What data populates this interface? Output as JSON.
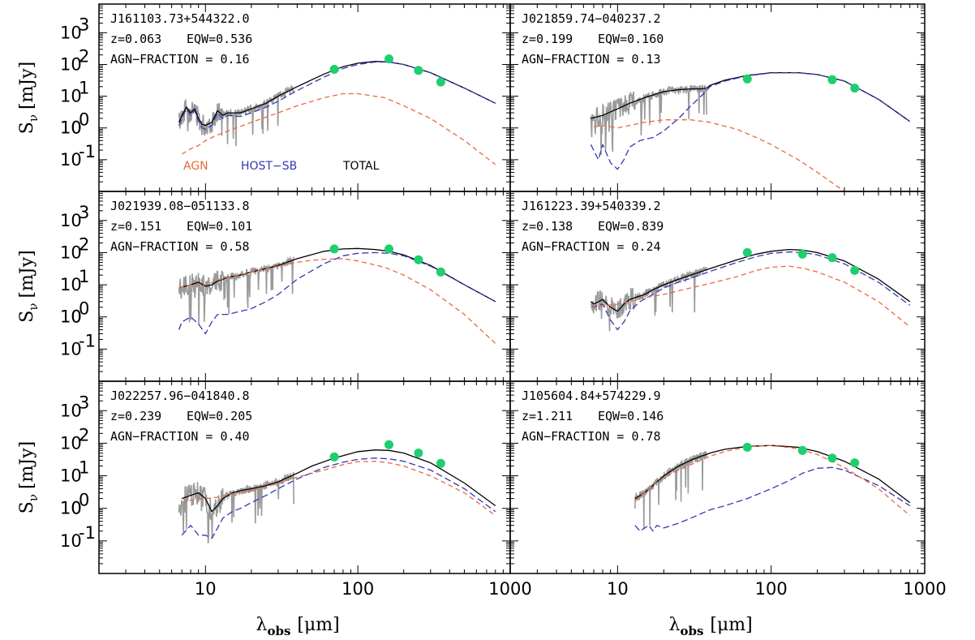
{
  "ylabel_main": "S",
  "ylabel_sub": "ν",
  "ylabel_unit": "[mJy]",
  "xlabel_main": "λ",
  "xlabel_sub": "obs",
  "xlabel_unit": "[μm]",
  "x_ticks": [
    "10",
    "100",
    "1000"
  ],
  "legend": [
    {
      "label": "AGN",
      "color": "#e9693d"
    },
    {
      "label": "HOST−SB",
      "color": "#3437b5"
    },
    {
      "label": "TOTAL",
      "color": "#000000"
    }
  ],
  "colors": {
    "photometry": "#1fce6e",
    "spectrum": "#9a9a9a",
    "agn": "#e9693d",
    "host": "#3437b5",
    "total": "#000000"
  },
  "chart_data": [
    {
      "type": "line",
      "id": "J161103.73+544322.0",
      "z": "z=0.063",
      "eqw": "EQW=0.536",
      "agn_fraction": "AGN−FRACTION = 0.16",
      "xlim": [
        2,
        1000
      ],
      "ylim": [
        0.01,
        8000
      ],
      "xscale": "log",
      "yscale": "log",
      "photometry": {
        "x": [
          70,
          160,
          250,
          350
        ],
        "y": [
          70,
          150,
          65,
          28
        ]
      },
      "spectrum": {
        "x_range": [
          6.7,
          38
        ]
      },
      "series": [
        {
          "key": "total",
          "x": [
            6.7,
            7,
            7.5,
            8,
            8.5,
            9,
            9.5,
            10,
            11,
            12,
            13,
            14,
            17,
            20,
            25,
            30,
            40,
            60,
            80,
            100,
            130,
            160,
            200,
            300,
            500,
            800
          ],
          "y": [
            1.5,
            2.5,
            4.5,
            3,
            4,
            2,
            1.3,
            1.2,
            1.5,
            3.5,
            2.5,
            3,
            3,
            4,
            6,
            10,
            20,
            50,
            85,
            110,
            125,
            120,
            100,
            55,
            18,
            6
          ]
        },
        {
          "key": "host",
          "x": [
            6.7,
            7,
            7.5,
            8,
            8.5,
            9,
            9.5,
            10,
            11,
            12,
            13,
            14,
            17,
            20,
            25,
            30,
            40,
            60,
            80,
            100,
            130,
            160,
            200,
            300,
            500,
            800
          ],
          "y": [
            1.2,
            2,
            4,
            2.5,
            3.5,
            1.6,
            1.0,
            0.9,
            1.2,
            3,
            2,
            2.5,
            2.3,
            3,
            4.5,
            7,
            15,
            40,
            75,
            100,
            120,
            118,
            100,
            55,
            18,
            6
          ]
        },
        {
          "key": "agn",
          "x": [
            7,
            8,
            9,
            10,
            12,
            15,
            20,
            30,
            40,
            60,
            80,
            100,
            150,
            200,
            300,
            500,
            800
          ],
          "y": [
            0.15,
            0.22,
            0.28,
            0.4,
            0.6,
            0.9,
            1.5,
            3,
            5,
            9,
            12,
            12,
            9,
            5,
            2,
            0.4,
            0.07
          ]
        }
      ]
    },
    {
      "type": "line",
      "id": "J021859.74−040237.2",
      "z": "z=0.199",
      "eqw": "EQW=0.160",
      "agn_fraction": "AGN−FRACTION = 0.13",
      "xlim": [
        2,
        1000
      ],
      "ylim": [
        0.01,
        8000
      ],
      "xscale": "log",
      "yscale": "log",
      "photometry": {
        "x": [
          70,
          250,
          350
        ],
        "y": [
          35,
          33,
          18
        ]
      },
      "spectrum": {
        "x_range": [
          6.7,
          38
        ]
      },
      "series": [
        {
          "key": "total",
          "x": [
            6.7,
            8,
            10,
            12,
            15,
            20,
            25,
            30,
            35,
            38,
            40,
            50,
            70,
            100,
            150,
            200,
            300,
            500,
            800
          ],
          "y": [
            2,
            2.5,
            4,
            6,
            9,
            14,
            16,
            17,
            17,
            18,
            22,
            32,
            45,
            55,
            55,
            48,
            30,
            8,
            1.6
          ]
        },
        {
          "key": "host",
          "x": [
            6.7,
            7.5,
            8,
            9,
            10,
            11,
            12,
            14,
            17,
            20,
            25,
            30,
            35,
            38,
            40,
            50,
            70,
            100,
            150,
            200,
            300,
            500,
            800
          ],
          "y": [
            0.3,
            0.1,
            0.3,
            0.08,
            0.05,
            0.1,
            0.25,
            0.4,
            0.5,
            0.8,
            2,
            5,
            10,
            15,
            20,
            30,
            44,
            54,
            55,
            48,
            30,
            8,
            1.6
          ]
        },
        {
          "key": "agn",
          "x": [
            7,
            8,
            10,
            12,
            15,
            20,
            30,
            40,
            60,
            80,
            100,
            150,
            200,
            300
          ],
          "y": [
            1.1,
            1.2,
            1.0,
            1.2,
            1.5,
            1.8,
            1.8,
            1.5,
            0.9,
            0.5,
            0.3,
            0.1,
            0.04,
            0.01
          ]
        }
      ]
    },
    {
      "type": "line",
      "id": "J021939.08−051133.8",
      "z": "z=0.151",
      "eqw": "EQW=0.101",
      "agn_fraction": "AGN−FRACTION = 0.58",
      "xlim": [
        2,
        1000
      ],
      "ylim": [
        0.01,
        8000
      ],
      "xscale": "log",
      "yscale": "log",
      "photometry": {
        "x": [
          70,
          160,
          250,
          350
        ],
        "y": [
          130,
          130,
          60,
          25
        ]
      },
      "spectrum": {
        "x_range": [
          6.7,
          38
        ]
      },
      "series": [
        {
          "key": "total",
          "x": [
            6.7,
            8,
            9,
            10,
            11,
            12,
            14,
            17,
            20,
            25,
            30,
            40,
            60,
            80,
            100,
            130,
            160,
            200,
            300,
            500,
            800
          ],
          "y": [
            8,
            10,
            12,
            9,
            10,
            13,
            17,
            20,
            25,
            32,
            40,
            65,
            110,
            130,
            135,
            125,
            110,
            85,
            40,
            10,
            3
          ]
        },
        {
          "key": "host",
          "x": [
            6.7,
            7,
            8,
            9,
            10,
            11,
            12,
            14,
            17,
            20,
            25,
            30,
            40,
            60,
            80,
            100,
            130,
            160,
            200,
            300,
            500,
            800
          ],
          "y": [
            0.4,
            0.7,
            1.0,
            0.6,
            0.3,
            0.7,
            1.2,
            1.2,
            1.5,
            1.8,
            3,
            5,
            15,
            45,
            80,
            95,
            100,
            95,
            80,
            38,
            10,
            3
          ]
        },
        {
          "key": "agn",
          "x": [
            6.7,
            8,
            10,
            12,
            15,
            20,
            30,
            40,
            50,
            60,
            80,
            100,
            150,
            200,
            300,
            500,
            800
          ],
          "y": [
            8,
            10,
            10,
            14,
            18,
            25,
            38,
            50,
            58,
            62,
            65,
            55,
            35,
            20,
            7,
            1.2,
            0.15
          ]
        }
      ]
    },
    {
      "type": "line",
      "id": "J161223.39+540339.2",
      "z": "z=0.138",
      "eqw": "EQW=0.839",
      "agn_fraction": "AGN−FRACTION = 0.24",
      "xlim": [
        2,
        1000
      ],
      "ylim": [
        0.01,
        8000
      ],
      "xscale": "log",
      "yscale": "log",
      "photometry": {
        "x": [
          70,
          160,
          250,
          350
        ],
        "y": [
          100,
          90,
          70,
          28
        ]
      },
      "spectrum": {
        "x_range": [
          6.7,
          38
        ]
      },
      "series": [
        {
          "key": "total",
          "x": [
            6.7,
            7,
            8,
            9,
            10,
            11,
            12,
            13,
            15,
            17,
            20,
            25,
            30,
            40,
            60,
            80,
            100,
            130,
            160,
            200,
            300,
            500,
            800
          ],
          "y": [
            3,
            2.5,
            3.5,
            2,
            1.5,
            2.5,
            3.5,
            4,
            5,
            7,
            10,
            15,
            20,
            32,
            60,
            90,
            110,
            125,
            120,
            100,
            55,
            15,
            3
          ]
        },
        {
          "key": "host",
          "x": [
            6.7,
            8,
            9,
            10,
            11,
            12,
            14,
            17,
            20,
            25,
            30,
            40,
            60,
            80,
            100,
            130,
            160,
            200,
            300,
            500,
            800
          ],
          "y": [
            2,
            2.5,
            0.8,
            0.4,
            0.7,
            1.5,
            3,
            5,
            8,
            12,
            16,
            26,
            50,
            75,
            95,
            105,
            100,
            85,
            45,
            12,
            2.3
          ]
        },
        {
          "key": "agn",
          "x": [
            6.7,
            8,
            10,
            12,
            15,
            20,
            30,
            40,
            60,
            80,
            100,
            130,
            160,
            200,
            300,
            500,
            800
          ],
          "y": [
            2,
            2.2,
            2.5,
            3,
            4,
            5,
            8,
            11,
            18,
            28,
            35,
            38,
            33,
            25,
            12,
            3,
            0.5
          ]
        }
      ]
    },
    {
      "type": "line",
      "id": "J022257.96−041840.8",
      "z": "z=0.239",
      "eqw": "EQW=0.205",
      "agn_fraction": "AGN−FRACTION = 0.40",
      "xlim": [
        2,
        1000
      ],
      "ylim": [
        0.01,
        8000
      ],
      "xscale": "log",
      "yscale": "log",
      "photometry": {
        "x": [
          70,
          160,
          250,
          350
        ],
        "y": [
          38,
          90,
          50,
          24
        ]
      },
      "spectrum": {
        "x_range": [
          6.7,
          38
        ]
      },
      "series": [
        {
          "key": "total",
          "x": [
            7,
            8,
            9,
            10,
            11,
            12,
            13,
            15,
            17,
            20,
            25,
            30,
            40,
            50,
            70,
            100,
            130,
            160,
            200,
            300,
            500,
            800
          ],
          "y": [
            2,
            2.5,
            3,
            2,
            0.8,
            1.2,
            2,
            3,
            3.5,
            4,
            5,
            6.5,
            12,
            20,
            35,
            55,
            62,
            60,
            50,
            25,
            6,
            1.2
          ]
        },
        {
          "key": "host",
          "x": [
            7,
            8,
            9,
            10,
            11,
            12,
            13,
            15,
            17,
            20,
            25,
            30,
            40,
            60,
            80,
            100,
            130,
            160,
            200,
            300,
            500,
            800
          ],
          "y": [
            0.15,
            0.3,
            0.15,
            0.15,
            0.12,
            0.25,
            0.5,
            0.8,
            1.0,
            1.5,
            2.5,
            4,
            8,
            18,
            26,
            32,
            35,
            33,
            28,
            15,
            4,
            0.8
          ]
        },
        {
          "key": "agn",
          "x": [
            7,
            8,
            10,
            12,
            15,
            20,
            30,
            40,
            60,
            80,
            100,
            130,
            160,
            200,
            300,
            500,
            800
          ],
          "y": [
            1.5,
            1.8,
            2,
            2.2,
            2.8,
            3.5,
            6,
            9,
            15,
            22,
            27,
            28,
            25,
            20,
            10,
            3,
            0.6
          ]
        }
      ]
    },
    {
      "type": "line",
      "id": "J105604.84+574229.9",
      "z": "z=1.211",
      "eqw": "EQW=0.146",
      "agn_fraction": "AGN−FRACTION = 0.78",
      "xlim": [
        2,
        1000
      ],
      "ylim": [
        0.01,
        8000
      ],
      "xscale": "log",
      "yscale": "log",
      "photometry": {
        "x": [
          70,
          160,
          250,
          350
        ],
        "y": [
          75,
          60,
          35,
          25
        ]
      },
      "spectrum": {
        "x_range": [
          13,
          38
        ]
      },
      "series": [
        {
          "key": "total",
          "x": [
            13,
            15,
            17,
            20,
            25,
            30,
            35,
            38,
            40,
            50,
            70,
            100,
            150,
            200,
            300,
            500,
            800
          ],
          "y": [
            2,
            3,
            5,
            10,
            20,
            30,
            40,
            45,
            50,
            65,
            80,
            85,
            75,
            55,
            28,
            8,
            1.5
          ]
        },
        {
          "key": "host",
          "x": [
            13,
            14,
            15,
            16,
            17,
            18,
            20,
            25,
            30,
            40,
            50,
            70,
            100,
            130,
            160,
            200,
            250,
            300,
            500,
            800
          ],
          "y": [
            0.3,
            0.2,
            0.25,
            0.3,
            0.2,
            0.3,
            0.25,
            0.35,
            0.5,
            0.9,
            1.2,
            2,
            4,
            7,
            12,
            17,
            18,
            15,
            5,
            1.2
          ]
        },
        {
          "key": "agn",
          "x": [
            13,
            15,
            17,
            20,
            25,
            30,
            40,
            50,
            70,
            100,
            150,
            200,
            300,
            500,
            800
          ],
          "y": [
            1.8,
            3,
            5,
            9,
            15,
            22,
            40,
            55,
            78,
            85,
            68,
            45,
            18,
            4,
            0.6
          ]
        }
      ]
    }
  ]
}
